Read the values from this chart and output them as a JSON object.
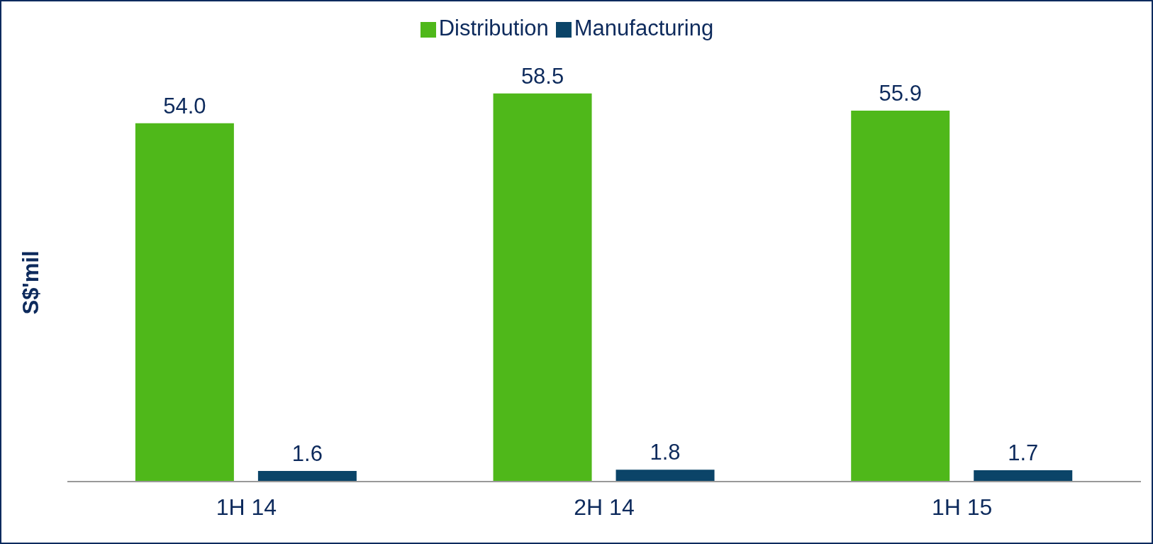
{
  "chart_data": {
    "type": "bar",
    "ylabel": "S$'mil",
    "categories": [
      "1H 14",
      "2H 14",
      "1H 15"
    ],
    "series": [
      {
        "name": "Distribution",
        "color": "#4fb81a",
        "values": [
          54.0,
          58.5,
          55.9
        ],
        "value_labels": [
          "54.0",
          "58.5",
          "55.9"
        ]
      },
      {
        "name": "Manufacturing",
        "color": "#0b4468",
        "values": [
          1.6,
          1.8,
          1.7
        ],
        "value_labels": [
          "1.6",
          "1.8",
          "1.7"
        ]
      }
    ],
    "data_labels": true,
    "legend": "top",
    "grid": false
  }
}
